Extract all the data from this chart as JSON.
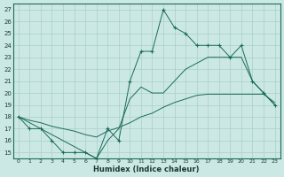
{
  "xlabel": "Humidex (Indice chaleur)",
  "bg_color": "#cce8e4",
  "grid_color": "#a8cfc9",
  "line_color": "#1a6b5a",
  "xlim": [
    -0.5,
    23.5
  ],
  "ylim": [
    14.5,
    27.5
  ],
  "xticks": [
    0,
    1,
    2,
    3,
    4,
    5,
    6,
    7,
    8,
    9,
    10,
    11,
    12,
    13,
    14,
    15,
    16,
    17,
    18,
    19,
    20,
    21,
    22,
    23
  ],
  "yticks": [
    15,
    16,
    17,
    18,
    19,
    20,
    21,
    22,
    23,
    24,
    25,
    26,
    27
  ],
  "line1_x": [
    0,
    1,
    2,
    3,
    4,
    5,
    6,
    7,
    8,
    9,
    10,
    11,
    12,
    13,
    14,
    15,
    16,
    17,
    18,
    19,
    20,
    21,
    22,
    23
  ],
  "line1_y": [
    18,
    17,
    17,
    16,
    15,
    15,
    15,
    14.5,
    17,
    16,
    21,
    23.5,
    23.5,
    27,
    25.5,
    25,
    24,
    24,
    24,
    23,
    24,
    21,
    20,
    19
  ],
  "line2_x": [
    0,
    1,
    2,
    3,
    4,
    5,
    6,
    7,
    8,
    9,
    10,
    11,
    12,
    13,
    14,
    15,
    16,
    17,
    18,
    19,
    20,
    21,
    22,
    23
  ],
  "line2_y": [
    18,
    17.7,
    17.5,
    17.2,
    17.0,
    16.8,
    16.5,
    16.3,
    16.8,
    17.1,
    17.5,
    18.0,
    18.3,
    18.8,
    19.2,
    19.5,
    19.8,
    19.9,
    19.9,
    19.9,
    19.9,
    19.9,
    19.9,
    19.2
  ],
  "line3_x": [
    0,
    1,
    2,
    3,
    4,
    5,
    6,
    7,
    8,
    9,
    10,
    11,
    12,
    13,
    14,
    15,
    16,
    17,
    18,
    19,
    20,
    21,
    22,
    23
  ],
  "line3_y": [
    18,
    17.5,
    17.0,
    16.5,
    16.0,
    15.5,
    15.0,
    14.5,
    16.0,
    17.0,
    19.5,
    20.5,
    20.0,
    20.0,
    21.0,
    22.0,
    22.5,
    23.0,
    23.0,
    23.0,
    23.0,
    21.0,
    20.0,
    19.0
  ]
}
